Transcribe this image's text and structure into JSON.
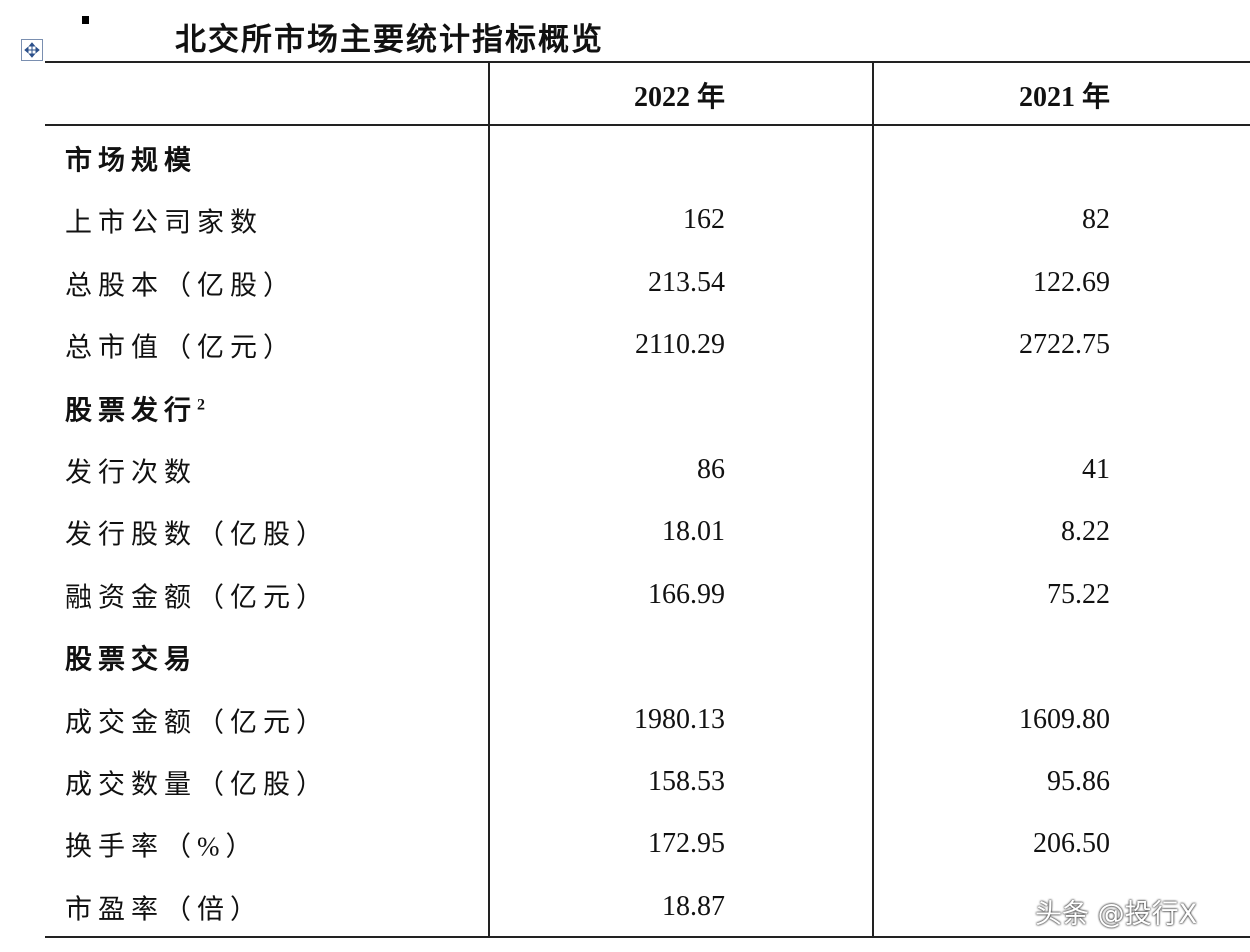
{
  "title": "北交所市场主要统计指标概览",
  "table": {
    "header": [
      "2022 年",
      "2021 年"
    ],
    "rows": [
      {
        "label": "市场规模",
        "section": true
      },
      {
        "label": "上市公司家数",
        "values": [
          "162",
          "82"
        ]
      },
      {
        "label": "总股本（亿股）",
        "values": [
          "213.54",
          "122.69"
        ]
      },
      {
        "label": "总市值（亿元）",
        "values": [
          "2110.29",
          "2722.75"
        ]
      },
      {
        "label": "股票发行",
        "sup": "2",
        "section": true
      },
      {
        "label": "发行次数",
        "values": [
          "86",
          "41"
        ]
      },
      {
        "label": "发行股数（亿股）",
        "values": [
          "18.01",
          "8.22"
        ]
      },
      {
        "label": "融资金额（亿元）",
        "values": [
          "166.99",
          "75.22"
        ]
      },
      {
        "label": "股票交易",
        "section": true
      },
      {
        "label": "成交金额（亿元）",
        "values": [
          "1980.13",
          "1609.80"
        ]
      },
      {
        "label": "成交数量（亿股）",
        "values": [
          "158.53",
          "95.86"
        ]
      },
      {
        "label": "换手率（%）",
        "values": [
          "172.95",
          "206.50"
        ]
      },
      {
        "label": "市盈率（倍）",
        "values": [
          "18.87"
        ]
      }
    ]
  },
  "watermark": "头条 @投行X"
}
